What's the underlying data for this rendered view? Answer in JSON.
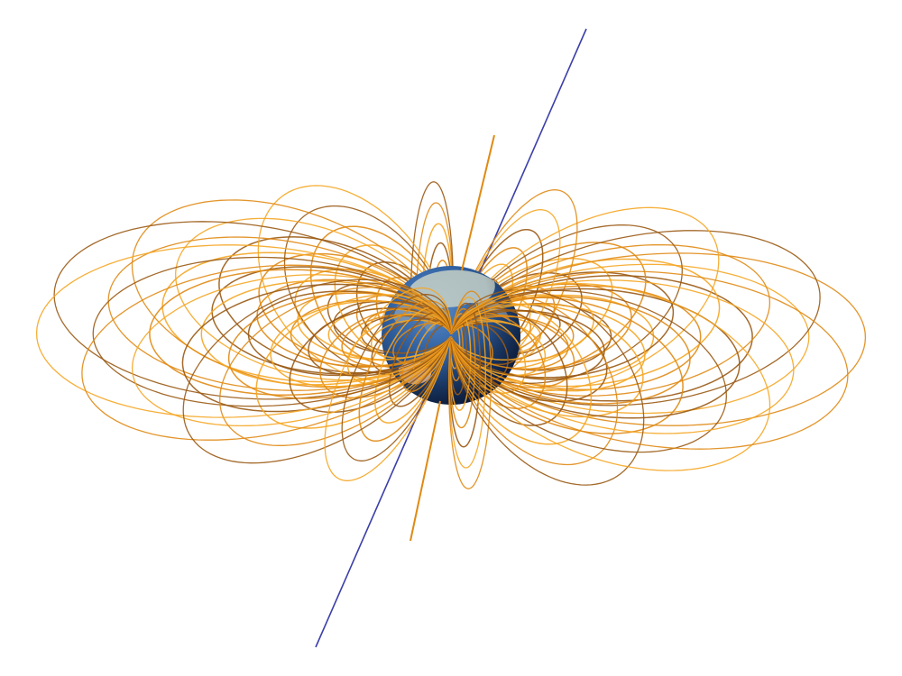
{
  "scene": {
    "subject": "earth-magnetosphere",
    "colors": {
      "background": "#ffffff",
      "field_line_light": "#f5a623",
      "field_line_mid": "#e08a14",
      "field_line_dark": "#9a5a14",
      "rotation_axis": "#3b3fa8",
      "ocean_light": "#3f6fb0",
      "ocean_dark": "#17325f",
      "land": "#c9d3c8",
      "australia": "#d9b7a0"
    },
    "icons": [
      "globe-icon",
      "rotation-axis-line"
    ]
  }
}
